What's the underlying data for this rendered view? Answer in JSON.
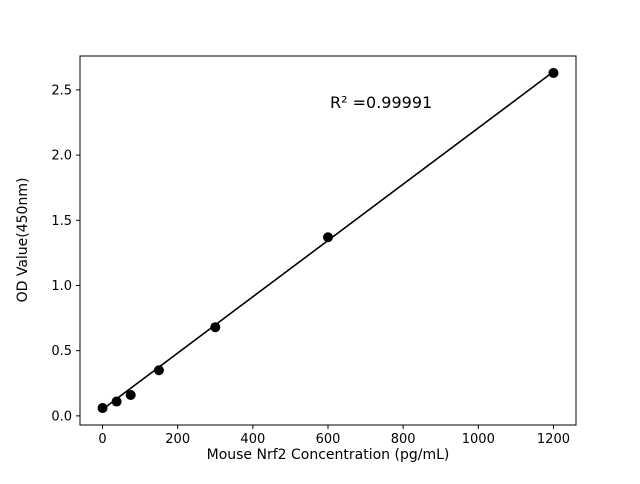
{
  "chart_data": {
    "type": "scatter",
    "title": "",
    "xlabel": "Mouse Nrf2 Concentration (pg/mL)",
    "ylabel": "OD Value(450nm)",
    "annotation": "R² =0.99991",
    "x": [
      0,
      37.5,
      75,
      150,
      300,
      600,
      1200
    ],
    "y": [
      0.06,
      0.11,
      0.16,
      0.35,
      0.68,
      1.37,
      2.63
    ],
    "trendline": {
      "x": [
        0,
        1200
      ],
      "y": [
        0.05,
        2.64
      ]
    },
    "xlim": [
      -60,
      1260
    ],
    "ylim": [
      -0.07,
      2.76
    ],
    "xticks": [
      0,
      200,
      400,
      600,
      800,
      1000,
      1200
    ],
    "xtick_labels": [
      "0",
      "200",
      "400",
      "600",
      "800",
      "1000",
      "1200"
    ],
    "yticks": [
      0.0,
      0.5,
      1.0,
      1.5,
      2.0,
      2.5
    ],
    "ytick_labels": [
      "0.0",
      "0.5",
      "1.0",
      "1.5",
      "2.0",
      "2.5"
    ],
    "grid": false,
    "legend": null,
    "point_color": "#000000",
    "line_color": "#000000",
    "background_color": "#ffffff"
  }
}
